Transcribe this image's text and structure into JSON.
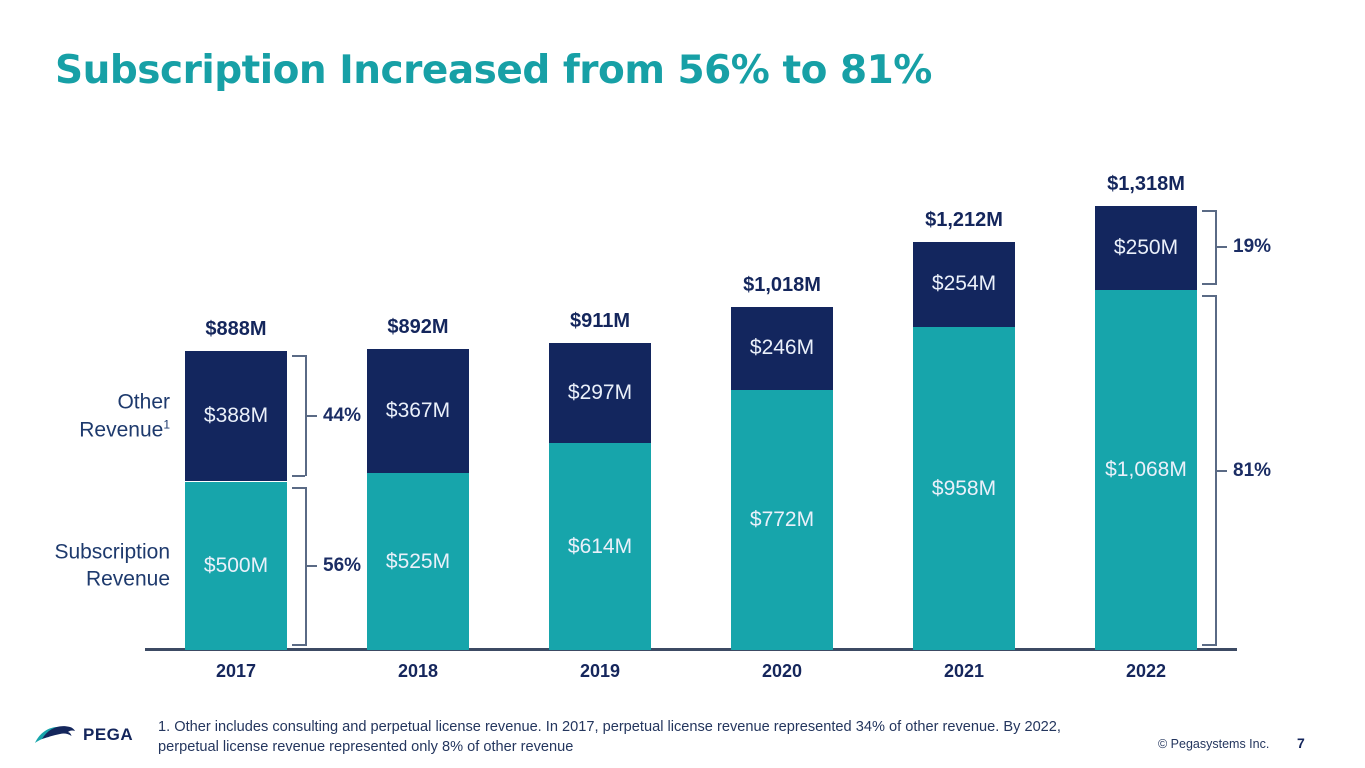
{
  "title": "Subscription Increased from 56% to 81%",
  "colors": {
    "title_teal": "#17a0a6",
    "subscription_teal": "#17a5ab",
    "other_navy": "#13265e",
    "navy_text": "#14265c",
    "bracket_line": "#5a6a85",
    "axis_line": "#3c4a63",
    "segment_text": "#eaf0fa"
  },
  "chart_data": {
    "type": "bar",
    "stacked": true,
    "title": "Subscription Increased from 56% to 81%",
    "unit": "$M",
    "grid": false,
    "legend_position": "left-of-first-bar",
    "ylim": [
      0,
      1400
    ],
    "categories": [
      "2017",
      "2018",
      "2019",
      "2020",
      "2021",
      "2022"
    ],
    "series": [
      {
        "name": "Subscription Revenue",
        "values": [
          500,
          525,
          614,
          772,
          958,
          1068
        ],
        "labels": [
          "$500M",
          "$525M",
          "$614M",
          "$772M",
          "$958M",
          "$1,068M"
        ],
        "color": "#17a5ab"
      },
      {
        "name": "Other Revenue",
        "name_superscript": "1",
        "values": [
          388,
          367,
          297,
          246,
          254,
          250
        ],
        "labels": [
          "$388M",
          "$367M",
          "$297M",
          "$246M",
          "$254M",
          "$250M"
        ],
        "color": "#13265e"
      }
    ],
    "totals": [
      "$888M",
      "$892M",
      "$911M",
      "$1,018M",
      "$1,212M",
      "$1,318M"
    ],
    "annotations": [
      {
        "category": "2017",
        "segment": "other",
        "label": "44%"
      },
      {
        "category": "2017",
        "segment": "subscription",
        "label": "56%"
      },
      {
        "category": "2022",
        "segment": "other",
        "label": "19%"
      },
      {
        "category": "2022",
        "segment": "subscription",
        "label": "81%"
      }
    ],
    "left_labels": [
      {
        "lines": [
          "Other",
          "Revenue"
        ],
        "superscript": "1",
        "anchor": "other"
      },
      {
        "lines": [
          "Subscription",
          "Revenue"
        ],
        "superscript": "",
        "anchor": "subscription"
      }
    ]
  },
  "footer": {
    "footnote": "1. Other includes consulting and perpetual license revenue. In 2017, perpetual license revenue represented 34% of other revenue. By 2022, perpetual license revenue represented only 8% of other revenue",
    "logo_text": "PEGA",
    "copyright": "© Pegasystems Inc.",
    "page_number": "7"
  }
}
